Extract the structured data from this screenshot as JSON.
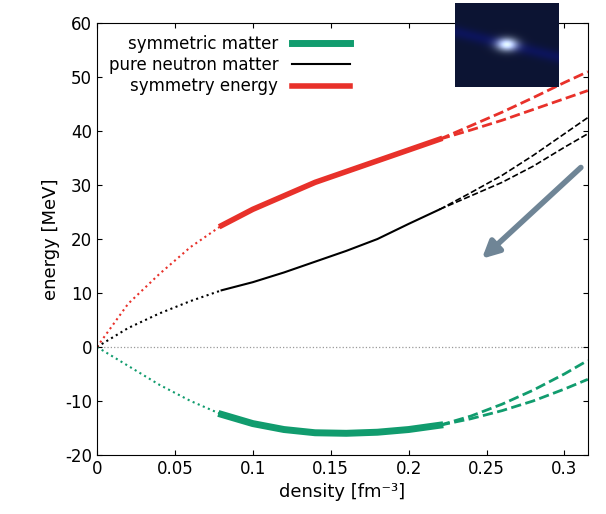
{
  "chart_data": {
    "type": "line",
    "xlabel": "density [fm⁻³]",
    "ylabel": "energy [MeV]",
    "xlim": [
      0,
      0.315
    ],
    "xticks": [
      0,
      0.05,
      0.1,
      0.15,
      0.2,
      0.25,
      0.3
    ],
    "ylim": [
      -20,
      60
    ],
    "yticks": [
      -20,
      -10,
      0,
      10,
      20,
      30,
      40,
      50,
      60
    ],
    "legend": "upper left",
    "reference_line": 0,
    "series": [
      {
        "name": "symmetric matter",
        "color": "#119c6e",
        "segments": [
          {
            "line_style": "dotted",
            "x": [
              0,
              0.02,
              0.04,
              0.06,
              0.08
            ],
            "values": [
              0,
              -3.5,
              -7,
              -10,
              -12.5
            ]
          },
          {
            "line_style": "solid",
            "x": [
              0.08,
              0.1,
              0.12,
              0.14,
              0.16,
              0.18,
              0.2,
              0.22
            ],
            "values": [
              -12.5,
              -14.2,
              -15.3,
              -15.9,
              -16.0,
              -15.8,
              -15.3,
              -14.5
            ]
          },
          {
            "line_style": "dashed",
            "x": [
              0.22,
              0.24,
              0.26,
              0.28,
              0.3,
              0.315
            ],
            "values": [
              -14.5,
              -13.3,
              -11.8,
              -10,
              -7.8,
              -6
            ]
          },
          {
            "line_style": "dashed",
            "x": [
              0.22,
              0.24,
              0.26,
              0.28,
              0.3,
              0.315
            ],
            "values": [
              -14.5,
              -12.8,
              -10.6,
              -8,
              -5,
              -2.5
            ]
          }
        ]
      },
      {
        "name": "pure neutron matter",
        "color": "#000000",
        "segments": [
          {
            "line_style": "dotted",
            "x": [
              0,
              0.02,
              0.04,
              0.06,
              0.08
            ],
            "values": [
              0,
              3.5,
              6.2,
              8.5,
              10.5
            ]
          },
          {
            "line_style": "solid",
            "x": [
              0.08,
              0.1,
              0.12,
              0.14,
              0.16,
              0.18,
              0.2,
              0.22
            ],
            "values": [
              10.5,
              12,
              13.8,
              15.8,
              17.8,
              20,
              22.8,
              25.5
            ]
          },
          {
            "line_style": "dashed",
            "x": [
              0.22,
              0.24,
              0.26,
              0.28,
              0.3,
              0.315
            ],
            "values": [
              25.5,
              28,
              30.5,
              33.5,
              37,
              39.5
            ]
          },
          {
            "line_style": "dashed",
            "x": [
              0.22,
              0.24,
              0.26,
              0.28,
              0.3,
              0.315
            ],
            "values": [
              25.5,
              28.6,
              31.8,
              35.5,
              39.5,
              42.5
            ]
          }
        ]
      },
      {
        "name": "symmetry energy",
        "color": "#e8312a",
        "segments": [
          {
            "line_style": "dotted",
            "x": [
              0,
              0.02,
              0.04,
              0.06,
              0.08
            ],
            "values": [
              0,
              8,
              13.5,
              18.5,
              22.5
            ]
          },
          {
            "line_style": "solid",
            "x": [
              0.08,
              0.1,
              0.12,
              0.14,
              0.16,
              0.18,
              0.2,
              0.22
            ],
            "values": [
              22.5,
              25.5,
              28,
              30.5,
              32.5,
              34.5,
              36.5,
              38.5
            ]
          },
          {
            "line_style": "dashed",
            "x": [
              0.22,
              0.24,
              0.26,
              0.28,
              0.3,
              0.315
            ],
            "values": [
              38.5,
              40.2,
              42,
              44,
              46,
              47.5
            ]
          },
          {
            "line_style": "dashed",
            "x": [
              0.22,
              0.24,
              0.26,
              0.28,
              0.3,
              0.315
            ],
            "values": [
              38.5,
              41,
              43.5,
              46.2,
              49,
              51
            ]
          }
        ]
      }
    ]
  }
}
